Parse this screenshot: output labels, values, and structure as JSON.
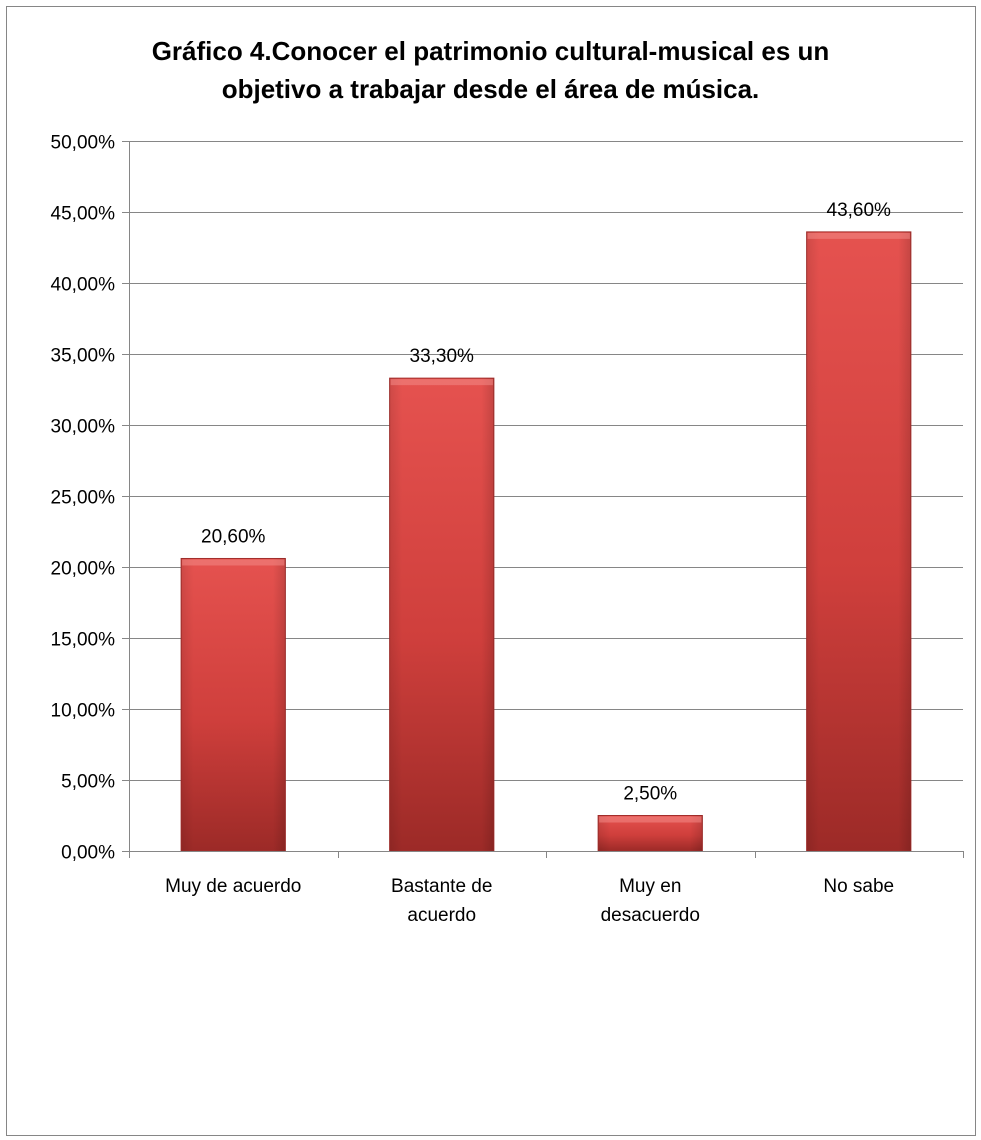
{
  "chart_data": {
    "type": "bar",
    "title": "Gráfico 4.Conocer el patrimonio cultural-musical es un objetivo a trabajar desde el área de música.",
    "title_lines": [
      "Gráfico 4.Conocer el patrimonio cultural-musical es un",
      "objetivo a trabajar desde el área de música."
    ],
    "categories": [
      [
        "Muy de acuerdo"
      ],
      [
        "Bastante de",
        "acuerdo"
      ],
      [
        "Muy en",
        "desacuerdo"
      ],
      [
        "No sabe"
      ]
    ],
    "values": [
      20.6,
      33.3,
      2.5,
      43.6
    ],
    "data_labels": [
      "20,60%",
      "33,30%",
      "2,50%",
      "43,60%"
    ],
    "ylim": [
      0,
      50
    ],
    "y_ticks": [
      0,
      5,
      10,
      15,
      20,
      25,
      30,
      35,
      40,
      45,
      50
    ],
    "y_tick_labels": [
      "0,00%",
      "5,00%",
      "10,00%",
      "15,00%",
      "20,00%",
      "25,00%",
      "30,00%",
      "35,00%",
      "40,00%",
      "45,00%",
      "50,00%"
    ],
    "xlabel": "",
    "ylabel": "",
    "grid": true,
    "legend": "none",
    "colors": {
      "bar_top": "#e5524f",
      "bar_mid": "#cf3f3c",
      "bar_bottom": "#9c2a27",
      "bar_edge": "#a32e2b",
      "gridline": "#868686",
      "axis": "#868686",
      "text": "#000000"
    }
  }
}
